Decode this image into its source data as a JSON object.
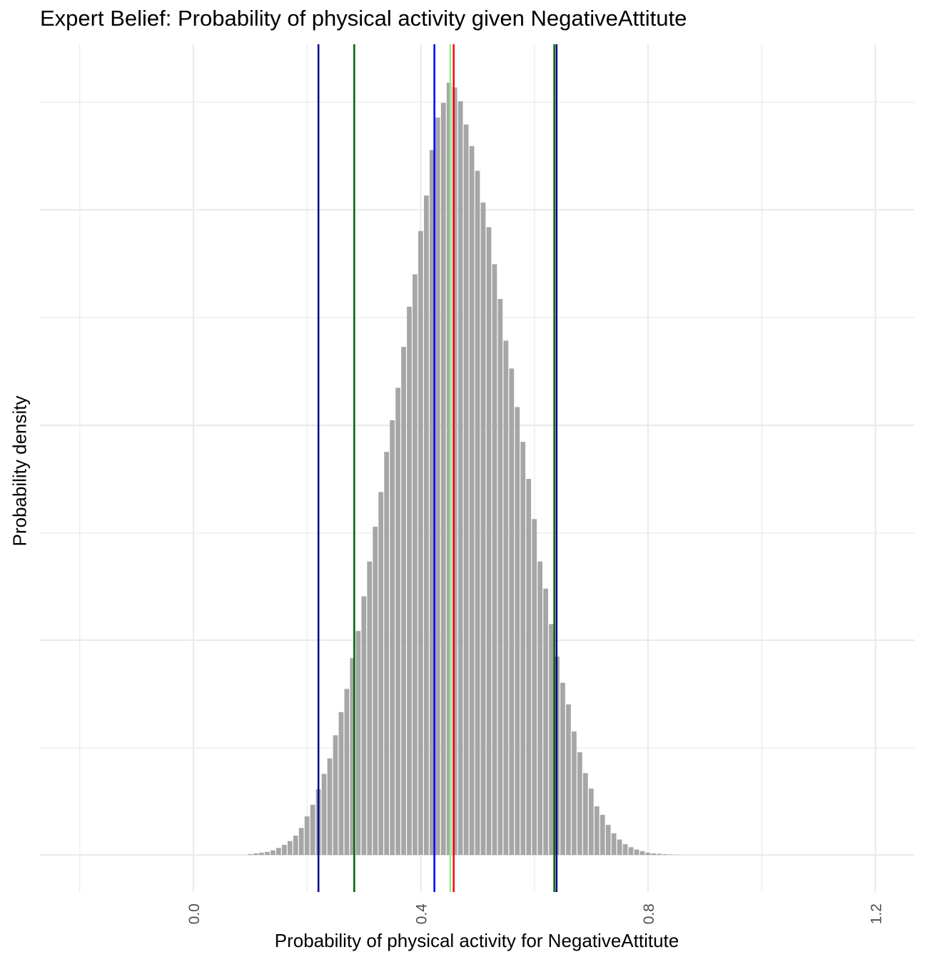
{
  "chart_data": {
    "type": "bar",
    "title": "Expert Belief: Probability of physical activity given NegativeAttitute",
    "xlabel": "Probability of physical activity for NegativeAttitute",
    "ylabel": "Probability density",
    "xlim": [
      -0.2,
      1.27
    ],
    "x_ticks": [
      0.0,
      0.4,
      0.8,
      1.2
    ],
    "x_tick_labels": [
      "0.0",
      "0.4",
      "0.8",
      "1.2"
    ],
    "grid": true,
    "legend": "none",
    "bin_width": 0.01,
    "histogram_bins": [
      {
        "x": 0.1,
        "h": 0.001
      },
      {
        "x": 0.11,
        "h": 0.002
      },
      {
        "x": 0.12,
        "h": 0.003
      },
      {
        "x": 0.13,
        "h": 0.004
      },
      {
        "x": 0.14,
        "h": 0.006
      },
      {
        "x": 0.15,
        "h": 0.009
      },
      {
        "x": 0.16,
        "h": 0.013
      },
      {
        "x": 0.17,
        "h": 0.018
      },
      {
        "x": 0.18,
        "h": 0.025
      },
      {
        "x": 0.19,
        "h": 0.035
      },
      {
        "x": 0.2,
        "h": 0.05
      },
      {
        "x": 0.21,
        "h": 0.065
      },
      {
        "x": 0.22,
        "h": 0.085
      },
      {
        "x": 0.23,
        "h": 0.105
      },
      {
        "x": 0.24,
        "h": 0.125
      },
      {
        "x": 0.25,
        "h": 0.155
      },
      {
        "x": 0.26,
        "h": 0.185
      },
      {
        "x": 0.27,
        "h": 0.215
      },
      {
        "x": 0.28,
        "h": 0.255
      },
      {
        "x": 0.29,
        "h": 0.29
      },
      {
        "x": 0.3,
        "h": 0.335
      },
      {
        "x": 0.31,
        "h": 0.38
      },
      {
        "x": 0.32,
        "h": 0.425
      },
      {
        "x": 0.33,
        "h": 0.47
      },
      {
        "x": 0.34,
        "h": 0.522
      },
      {
        "x": 0.35,
        "h": 0.563
      },
      {
        "x": 0.36,
        "h": 0.605
      },
      {
        "x": 0.37,
        "h": 0.658
      },
      {
        "x": 0.38,
        "h": 0.71
      },
      {
        "x": 0.39,
        "h": 0.752
      },
      {
        "x": 0.4,
        "h": 0.808
      },
      {
        "x": 0.41,
        "h": 0.854
      },
      {
        "x": 0.42,
        "h": 0.913
      },
      {
        "x": 0.43,
        "h": 0.955
      },
      {
        "x": 0.44,
        "h": 0.974
      },
      {
        "x": 0.45,
        "h": 1.0
      },
      {
        "x": 0.46,
        "h": 0.994
      },
      {
        "x": 0.47,
        "h": 0.976
      },
      {
        "x": 0.48,
        "h": 0.946
      },
      {
        "x": 0.49,
        "h": 0.918
      },
      {
        "x": 0.5,
        "h": 0.886
      },
      {
        "x": 0.51,
        "h": 0.845
      },
      {
        "x": 0.52,
        "h": 0.813
      },
      {
        "x": 0.53,
        "h": 0.765
      },
      {
        "x": 0.54,
        "h": 0.72
      },
      {
        "x": 0.55,
        "h": 0.666
      },
      {
        "x": 0.56,
        "h": 0.63
      },
      {
        "x": 0.57,
        "h": 0.58
      },
      {
        "x": 0.58,
        "h": 0.535
      },
      {
        "x": 0.59,
        "h": 0.487
      },
      {
        "x": 0.6,
        "h": 0.435
      },
      {
        "x": 0.61,
        "h": 0.38
      },
      {
        "x": 0.62,
        "h": 0.345
      },
      {
        "x": 0.63,
        "h": 0.299
      },
      {
        "x": 0.64,
        "h": 0.257
      },
      {
        "x": 0.65,
        "h": 0.223
      },
      {
        "x": 0.66,
        "h": 0.195
      },
      {
        "x": 0.67,
        "h": 0.16
      },
      {
        "x": 0.68,
        "h": 0.133
      },
      {
        "x": 0.69,
        "h": 0.106
      },
      {
        "x": 0.7,
        "h": 0.086
      },
      {
        "x": 0.71,
        "h": 0.063
      },
      {
        "x": 0.72,
        "h": 0.052
      },
      {
        "x": 0.73,
        "h": 0.039
      },
      {
        "x": 0.74,
        "h": 0.028
      },
      {
        "x": 0.75,
        "h": 0.02
      },
      {
        "x": 0.76,
        "h": 0.014
      },
      {
        "x": 0.77,
        "h": 0.01
      },
      {
        "x": 0.78,
        "h": 0.007
      },
      {
        "x": 0.79,
        "h": 0.005
      },
      {
        "x": 0.8,
        "h": 0.003
      },
      {
        "x": 0.81,
        "h": 0.002
      },
      {
        "x": 0.82,
        "h": 0.0015
      },
      {
        "x": 0.83,
        "h": 0.001
      },
      {
        "x": 0.84,
        "h": 0.0005
      },
      {
        "x": 0.85,
        "h": 0.0003
      }
    ],
    "reference_lines": [
      {
        "x": 0.22,
        "color": "#00008b"
      },
      {
        "x": 0.283,
        "color": "#006400"
      },
      {
        "x": 0.424,
        "color": "#0000ff"
      },
      {
        "x": 0.452,
        "color": "#90ee90"
      },
      {
        "x": 0.458,
        "color": "#ff0000"
      },
      {
        "x": 0.635,
        "color": "#006400"
      },
      {
        "x": 0.639,
        "color": "#00008b"
      }
    ],
    "bar_color": "#a6a6a6",
    "grid_color": "#ebebeb"
  }
}
